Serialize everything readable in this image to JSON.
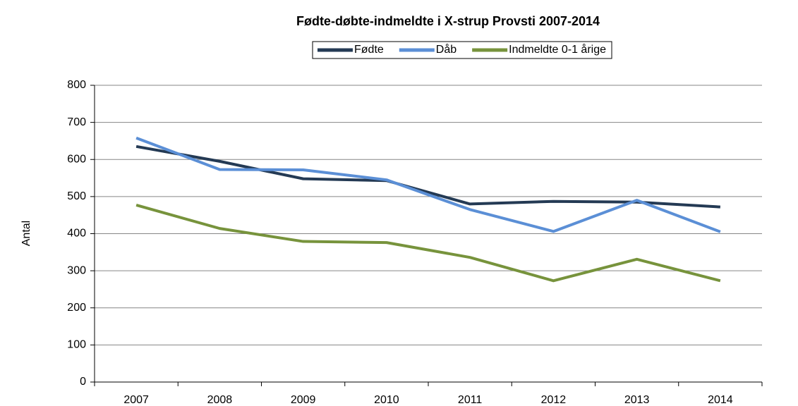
{
  "chart_data": {
    "type": "line",
    "title": "Fødte-døbte-indmeldte i X-strup Provsti 2007-2014",
    "y_label": "Antal",
    "categories": [
      "2007",
      "2008",
      "2009",
      "2010",
      "2011",
      "2012",
      "2013",
      "2014"
    ],
    "series": [
      {
        "name": "Fødte",
        "color": "#243a54",
        "values": [
          635,
          595,
          548,
          543,
          480,
          487,
          485,
          472
        ]
      },
      {
        "name": "Dåb",
        "color": "#5b8fd6",
        "values": [
          658,
          573,
          572,
          545,
          465,
          406,
          490,
          405
        ]
      },
      {
        "name": "Indmeldte 0-1 årige",
        "color": "#77933c",
        "values": [
          477,
          414,
          379,
          376,
          336,
          273,
          331,
          273
        ]
      }
    ],
    "ylim": [
      0,
      800
    ],
    "yticks": [
      0,
      100,
      200,
      300,
      400,
      500,
      600,
      700,
      800
    ],
    "grid": true,
    "legend": "top"
  }
}
